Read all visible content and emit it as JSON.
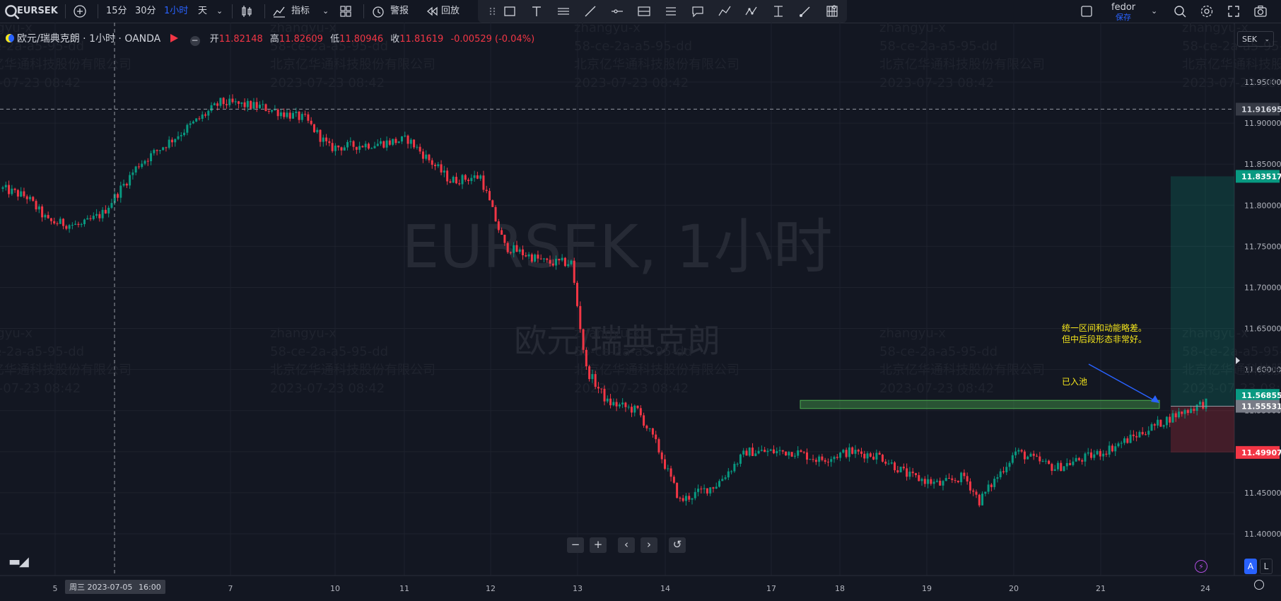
{
  "toolbar": {
    "symbol": "EURSEK",
    "intervals": [
      "15分",
      "30分",
      "1小时",
      "天"
    ],
    "active_interval": "1小时",
    "indicators_label": "指标",
    "alerts_label": "警报",
    "replay_label": "回放",
    "user_name": "fedor",
    "save_label": "保存"
  },
  "legend": {
    "title": "欧元/瑞典克朗 · 1小时 · OANDA",
    "open_label": "开",
    "open": "11.82148",
    "high_label": "高",
    "high": "11.82609",
    "low_label": "低",
    "low": "11.80946",
    "close_label": "收",
    "close": "11.81619",
    "change": "-0.00529 (-0.04%)"
  },
  "currency": "SEK",
  "watermark": {
    "line1": "EURSEK, 1小时",
    "line2": "欧元/瑞典克朗"
  },
  "overlay_watermark": [
    "zhangyu-x",
    "58-ce-2a-a5-95-dd",
    "北京亿华通科技股份有限公司",
    "2023-07-23 08:42"
  ],
  "annotation": {
    "line1": "统一区间和动能略差。",
    "line2": "但中后段形态非常好。",
    "line3": "已入池"
  },
  "crosshair": {
    "time_label": "周三 2023-07-05",
    "time_value": "16:00",
    "price_label": "11.91695"
  },
  "nav_buttons": [
    "−",
    "+",
    "‹",
    "›",
    "↺"
  ],
  "bottom_right": {
    "scale_auto": "A",
    "scale_log": "L"
  },
  "colors": {
    "bull": "#089981",
    "bear": "#f23645",
    "accent": "#2962ff",
    "annotation": "#f5e61b",
    "zone": "#4caf50"
  },
  "chart_data": {
    "type": "candlestick",
    "symbol": "EURSEK",
    "interval": "1小时",
    "ylim": [
      11.375,
      12.005
    ],
    "y_ticks": [
      "11.95000",
      "11.90000",
      "11.85000",
      "11.80000",
      "11.75000",
      "11.70000",
      "11.65000",
      "11.60000",
      "11.55000",
      "11.50000",
      "11.45000",
      "11.40000"
    ],
    "x_ticks": [
      "5",
      "7",
      "10",
      "11",
      "12",
      "13",
      "14",
      "17",
      "18",
      "19",
      "20",
      "21",
      "24"
    ],
    "price_labels": [
      {
        "value": "11.91695",
        "style": "crosshair"
      },
      {
        "value": "11.83517",
        "style": "target"
      },
      {
        "value": "11.56855",
        "style": "last"
      },
      {
        "value": "11.55531",
        "style": "entry"
      },
      {
        "value": "11.49907",
        "style": "stop"
      }
    ],
    "position": {
      "entry": 11.55531,
      "target": 11.83517,
      "stop": 11.49907
    },
    "consolidation_zone": {
      "low": 11.5525,
      "high": 11.5625
    },
    "path": [
      [
        0,
        11.82
      ],
      [
        8,
        11.81
      ],
      [
        15,
        11.78
      ],
      [
        26,
        11.775
      ],
      [
        33,
        11.79
      ],
      [
        45,
        11.85
      ],
      [
        56,
        11.88
      ],
      [
        72,
        11.925
      ],
      [
        85,
        11.92
      ],
      [
        100,
        11.905
      ],
      [
        108,
        11.87
      ],
      [
        124,
        11.875
      ],
      [
        134,
        11.88
      ],
      [
        148,
        11.83
      ],
      [
        158,
        11.835
      ],
      [
        166,
        11.75
      ],
      [
        180,
        11.73
      ],
      [
        188,
        11.73
      ],
      [
        193,
        11.6
      ],
      [
        200,
        11.56
      ],
      [
        210,
        11.55
      ],
      [
        216,
        11.51
      ],
      [
        224,
        11.44
      ],
      [
        236,
        11.46
      ],
      [
        246,
        11.5
      ],
      [
        255,
        11.5
      ],
      [
        262,
        11.5
      ],
      [
        270,
        11.49
      ],
      [
        280,
        11.5
      ],
      [
        290,
        11.495
      ],
      [
        300,
        11.47
      ],
      [
        310,
        11.46
      ],
      [
        318,
        11.47
      ],
      [
        323,
        11.44
      ],
      [
        335,
        11.5
      ],
      [
        348,
        11.48
      ],
      [
        356,
        11.49
      ],
      [
        364,
        11.5
      ],
      [
        375,
        11.52
      ],
      [
        388,
        11.545
      ],
      [
        398,
        11.56
      ]
    ]
  }
}
